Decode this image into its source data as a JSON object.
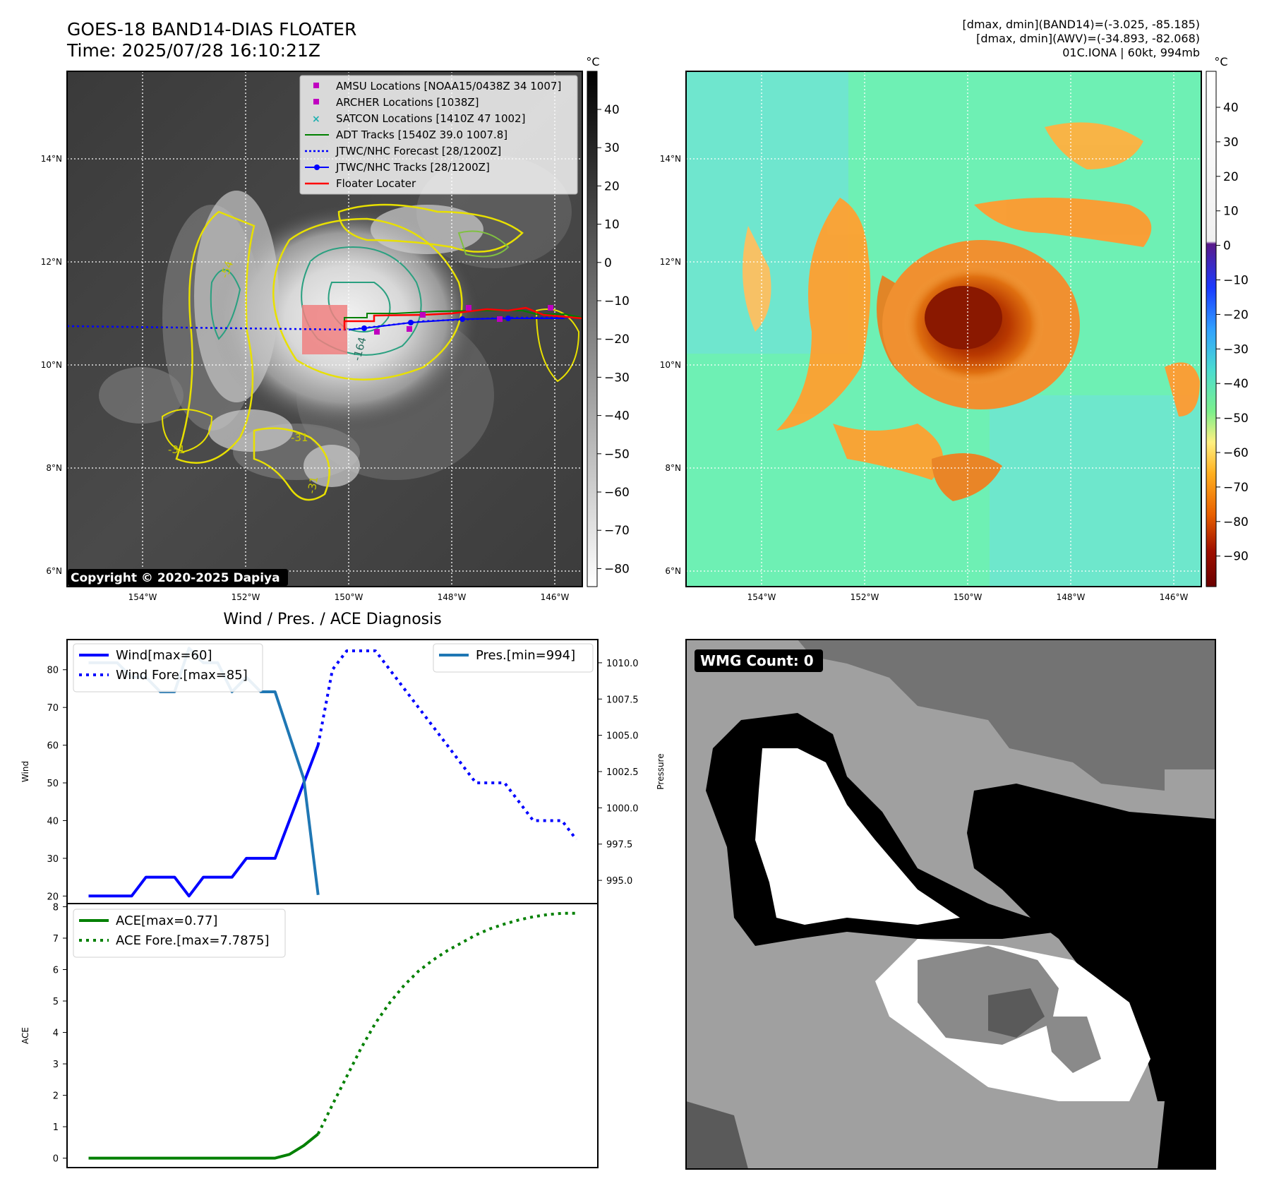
{
  "header": {
    "title_line1": "GOES-18 BAND14-DIAS FLOATER",
    "title_line2": "Time: 2025/07/28 16:10:21Z",
    "stats_line1": "[dmax, dmin](BAND14)=(-3.025, -85.185)",
    "stats_line2": "[dmax, dmin](AWV)=(-34.893, -82.068)",
    "stats_line3": "01C.IONA | 60kt, 994mb"
  },
  "map": {
    "lat_labels": [
      "14°N",
      "12°N",
      "10°N",
      "8°N",
      "6°N"
    ],
    "lon_labels": [
      "154°W",
      "152°W",
      "150°W",
      "148°W",
      "146°W"
    ],
    "copyright": "Copyright © 2020-2025 Dapiya",
    "contour_labels": [
      "-31",
      "-54",
      "-164",
      "-31",
      "-31"
    ],
    "legend": [
      {
        "label": "AMSU Locations [NOAA15/0438Z 34 1007]",
        "color": "#c000c0",
        "marker": "square"
      },
      {
        "label": "ARCHER Locations [1038Z]",
        "color": "#c000c0",
        "marker": "square"
      },
      {
        "label": "SATCON Locations [1410Z 47 1002]",
        "color": "#20b0b0",
        "marker": "x"
      },
      {
        "label": "ADT Tracks [1540Z 39.0 1007.8]",
        "color": "#008000",
        "marker": "line"
      },
      {
        "label": "JTWC/NHC Forecast [28/1200Z]",
        "color": "#0000ff",
        "marker": "dotted"
      },
      {
        "label": "JTWC/NHC Tracks [28/1200Z]",
        "color": "#0000ff",
        "marker": "line-dot"
      },
      {
        "label": "Floater Locater",
        "color": "#ff0000",
        "marker": "line"
      }
    ]
  },
  "colorbars": {
    "unit": "°C",
    "left_ticks": [
      "40",
      "30",
      "20",
      "10",
      "0",
      "−10",
      "−20",
      "−30",
      "−40",
      "−50",
      "−60",
      "−70",
      "−80"
    ],
    "right_ticks": [
      "40",
      "30",
      "20",
      "10",
      "0",
      "−10",
      "−20",
      "−30",
      "−40",
      "−50",
      "−60",
      "−70",
      "−80",
      "−90"
    ]
  },
  "wmg": {
    "count_label": "WMG Count: 0"
  },
  "chart_data": [
    {
      "type": "line",
      "title": "Wind / Pres. / ACE Diagnosis",
      "ylabel": "Wind",
      "ylabel_right": "Pressure",
      "ylim": [
        18,
        88
      ],
      "ylim_right": [
        993.4,
        1011.6
      ],
      "yticks": [
        20,
        30,
        40,
        50,
        60,
        70,
        80
      ],
      "yticks_right": [
        "995.0",
        "997.5",
        "1000.0",
        "1002.5",
        "1005.0",
        "1007.5",
        "1010.0"
      ],
      "series": [
        {
          "name": "Wind[max=60]",
          "style": "solid",
          "color": "#0000ff",
          "axis": "left",
          "x": [
            0,
            1,
            2,
            3,
            4,
            5,
            6,
            7,
            8,
            9,
            10,
            11,
            12,
            13,
            14,
            15,
            16
          ],
          "values": [
            20,
            20,
            20,
            20,
            25,
            25,
            25,
            20,
            25,
            25,
            25,
            30,
            30,
            30,
            40,
            50,
            60
          ]
        },
        {
          "name": "Wind Fore.[max=85]",
          "style": "dotted",
          "color": "#0000ff",
          "axis": "left",
          "x": [
            16,
            17,
            18,
            19,
            20,
            21,
            22,
            23,
            24,
            25,
            26,
            27,
            28,
            29,
            30,
            31,
            32,
            33,
            34
          ],
          "values": [
            60,
            80,
            85,
            85,
            85,
            80,
            75,
            70,
            65,
            60,
            55,
            50,
            50,
            50,
            45,
            40,
            40,
            40,
            35
          ]
        },
        {
          "name": "Pres.[min=994]",
          "style": "solid",
          "color": "#1f77b4",
          "axis": "right",
          "x": [
            0,
            1,
            2,
            3,
            4,
            5,
            6,
            7,
            8,
            9,
            10,
            11,
            12,
            13,
            14,
            15,
            16
          ],
          "values": [
            1010,
            1010,
            1010,
            1009,
            1009,
            1008,
            1008,
            1011,
            1010,
            1010,
            1008,
            1009,
            1008,
            1008,
            1005,
            1002,
            994
          ]
        }
      ]
    },
    {
      "type": "line",
      "ylabel": "ACE",
      "ylim": [
        -0.3,
        8.1
      ],
      "yticks": [
        0,
        1,
        2,
        3,
        4,
        5,
        6,
        7,
        8
      ],
      "series": [
        {
          "name": "ACE[max=0.77]",
          "style": "solid",
          "color": "#008000",
          "x": [
            0,
            1,
            2,
            3,
            4,
            5,
            6,
            7,
            8,
            9,
            10,
            11,
            12,
            13,
            14,
            15,
            16
          ],
          "values": [
            0,
            0,
            0,
            0,
            0,
            0,
            0,
            0,
            0,
            0,
            0,
            0,
            0,
            0,
            0.12,
            0.4,
            0.77
          ]
        },
        {
          "name": "ACE Fore.[max=7.7875]",
          "style": "dotted",
          "color": "#008000",
          "x": [
            16,
            17,
            18,
            19,
            20,
            21,
            22,
            23,
            24,
            25,
            26,
            27,
            28,
            29,
            30,
            31,
            32,
            33,
            34
          ],
          "values": [
            0.77,
            1.7,
            2.6,
            3.5,
            4.3,
            4.95,
            5.5,
            5.95,
            6.3,
            6.6,
            6.85,
            7.1,
            7.3,
            7.45,
            7.58,
            7.68,
            7.75,
            7.79,
            7.79
          ]
        }
      ]
    }
  ]
}
